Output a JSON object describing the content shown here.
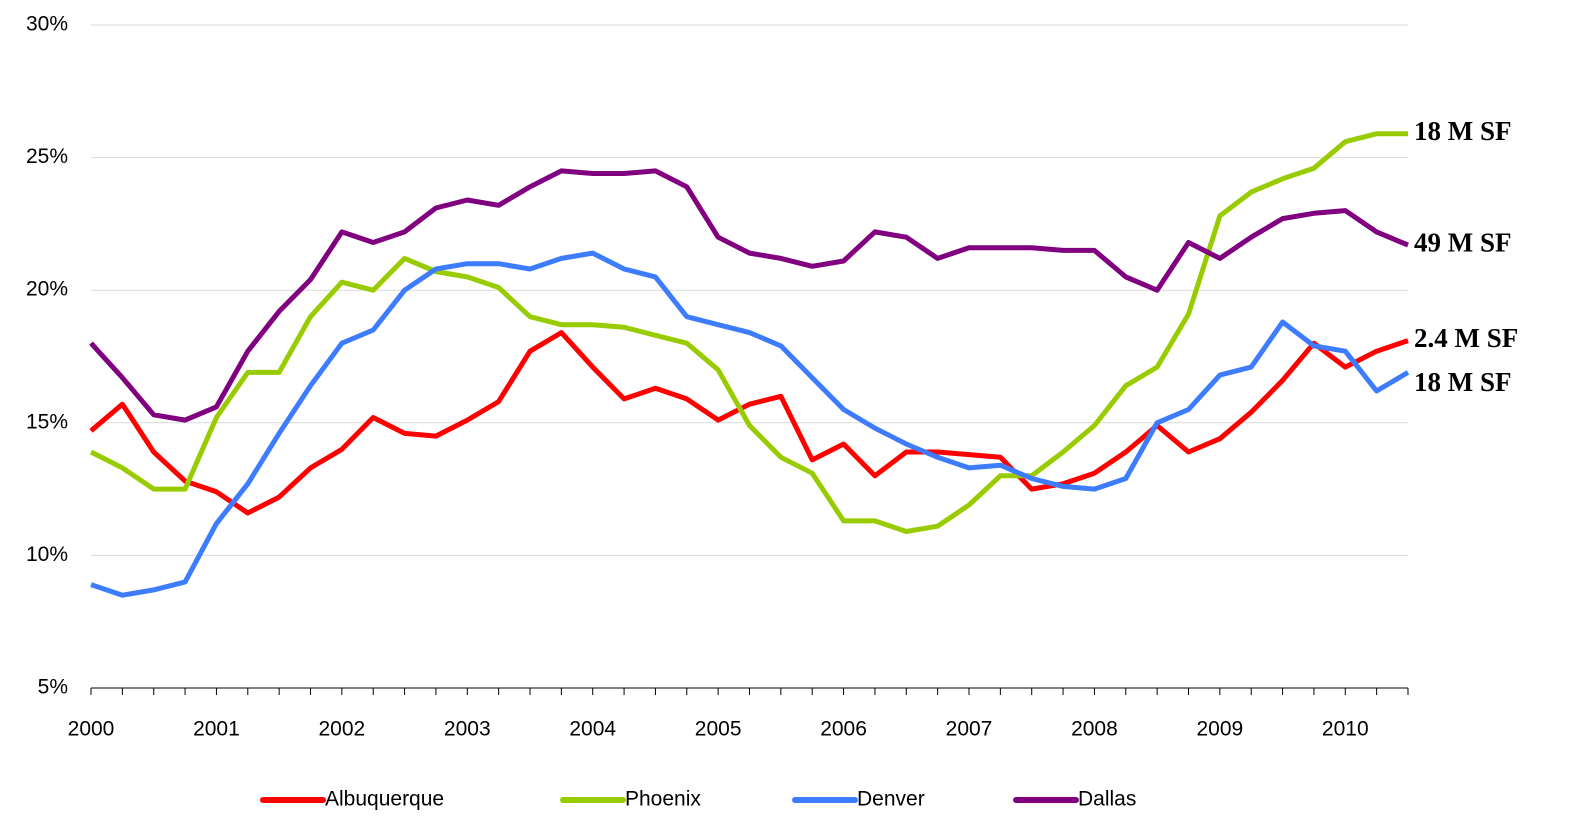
{
  "chart_data": {
    "type": "line",
    "categories": [
      "2000",
      null,
      null,
      null,
      "2001",
      null,
      null,
      null,
      "2002",
      null,
      null,
      null,
      "2003",
      null,
      null,
      null,
      "2004",
      null,
      null,
      null,
      "2005",
      null,
      null,
      null,
      "2006",
      null,
      null,
      null,
      "2007",
      null,
      null,
      null,
      "2008",
      null,
      null,
      null,
      "2009",
      null,
      null,
      null,
      "2010",
      null,
      null
    ],
    "series": [
      {
        "name": "Albuquerque",
        "color": "#ff0000",
        "end_label": "2.4 M SF",
        "end_label_color": "#ff0000",
        "values": [
          14.7,
          15.7,
          13.9,
          12.8,
          12.4,
          11.6,
          12.2,
          13.3,
          14.0,
          15.2,
          14.6,
          14.5,
          15.1,
          15.8,
          17.7,
          18.4,
          17.1,
          15.9,
          16.3,
          15.9,
          15.1,
          15.7,
          16.0,
          13.6,
          14.2,
          13.0,
          13.9,
          13.9,
          13.8,
          13.7,
          12.5,
          12.7,
          13.1,
          13.9,
          14.9,
          13.9,
          14.4,
          15.4,
          16.6,
          18.0,
          17.1,
          17.7,
          18.1
        ]
      },
      {
        "name": "Phoenix",
        "color": "#99cc00",
        "end_label": "18 M SF",
        "end_label_color": "#000000",
        "values": [
          13.9,
          13.3,
          12.5,
          12.5,
          15.2,
          16.9,
          16.9,
          19.0,
          20.3,
          20.0,
          21.2,
          20.7,
          20.5,
          20.1,
          19.0,
          18.7,
          18.7,
          18.6,
          18.3,
          18.0,
          17.0,
          14.9,
          13.7,
          13.1,
          11.3,
          11.3,
          10.9,
          11.1,
          11.9,
          13.0,
          13.0,
          13.9,
          14.9,
          16.4,
          17.1,
          19.1,
          22.8,
          23.7,
          24.2,
          24.6,
          25.6,
          25.9,
          25.9
        ]
      },
      {
        "name": "Denver",
        "color": "#3d7cff",
        "end_label": "18 M SF",
        "end_label_color": "#000000",
        "values": [
          8.9,
          8.5,
          8.7,
          9.0,
          11.2,
          12.7,
          14.6,
          16.4,
          18.0,
          18.5,
          20.0,
          20.8,
          21.0,
          21.0,
          20.8,
          21.2,
          21.4,
          20.8,
          20.5,
          19.0,
          18.7,
          18.4,
          17.9,
          16.7,
          15.5,
          14.8,
          14.2,
          13.7,
          13.3,
          13.4,
          12.9,
          12.6,
          12.5,
          12.9,
          15.0,
          15.5,
          16.8,
          17.1,
          18.8,
          17.9,
          17.7,
          16.2,
          16.9
        ]
      },
      {
        "name": "Dallas",
        "color": "#800080",
        "end_label": "49 M SF",
        "end_label_color": "#000000",
        "values": [
          18.0,
          16.7,
          15.3,
          15.1,
          15.6,
          17.7,
          19.2,
          20.4,
          22.2,
          21.8,
          22.2,
          23.1,
          23.4,
          23.2,
          23.9,
          24.5,
          24.4,
          24.4,
          24.5,
          23.9,
          22.0,
          21.4,
          21.2,
          20.9,
          21.1,
          22.2,
          22.0,
          21.2,
          21.6,
          21.6,
          21.6,
          21.5,
          21.5,
          20.5,
          20.0,
          21.8,
          21.2,
          22.0,
          22.7,
          22.9,
          23.0,
          22.2,
          21.7
        ]
      }
    ],
    "ylim": [
      5,
      30
    ],
    "yticks": [
      {
        "value": 5,
        "label": "5%"
      },
      {
        "value": 10,
        "label": "10%"
      },
      {
        "value": 15,
        "label": "15%"
      },
      {
        "value": 20,
        "label": "20%"
      },
      {
        "value": 25,
        "label": "25%"
      },
      {
        "value": 30,
        "label": "30%"
      }
    ],
    "grid": true,
    "legend": "bottom"
  }
}
